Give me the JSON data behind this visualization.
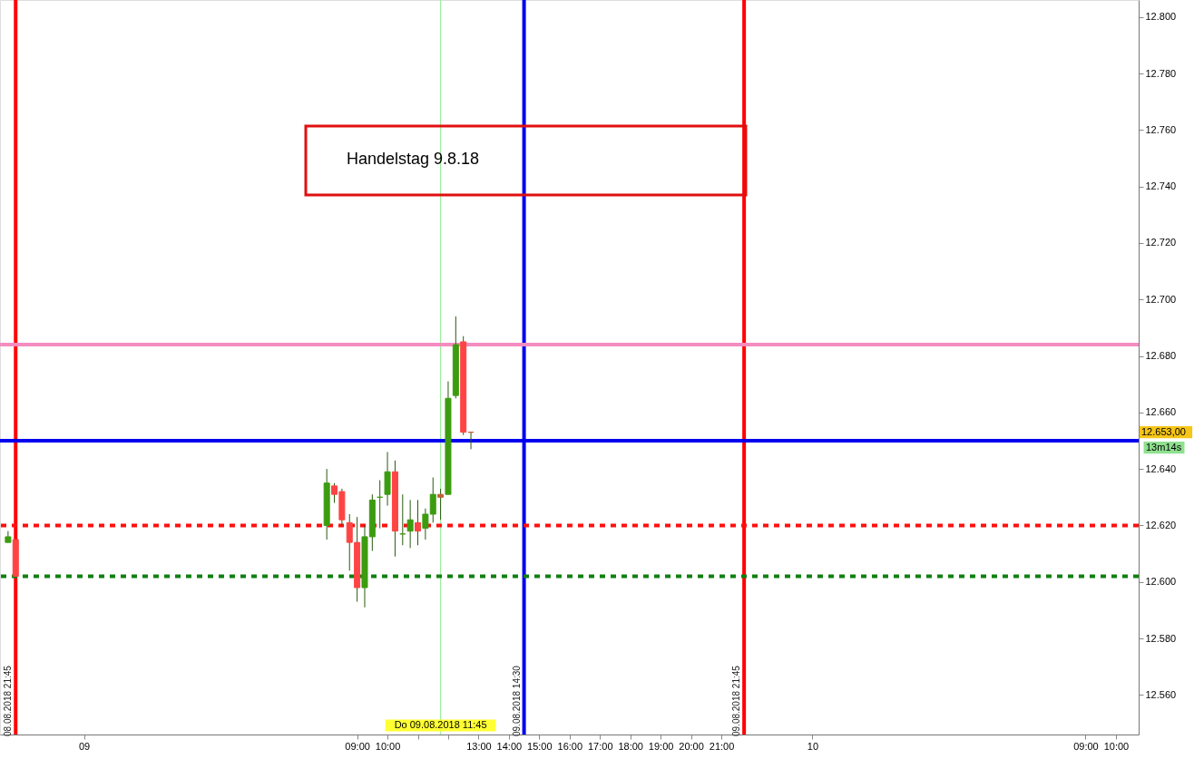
{
  "chart_data": {
    "type": "candlestick",
    "x": [
      "2018-08-08T21:30",
      "2018-08-08T21:45",
      "2018-08-09T08:00",
      "2018-08-09T08:15",
      "2018-08-09T08:30",
      "2018-08-09T08:45",
      "2018-08-09T09:00",
      "2018-08-09T09:15",
      "2018-08-09T09:30",
      "2018-08-09T09:45",
      "2018-08-09T10:00",
      "2018-08-09T10:15",
      "2018-08-09T10:30",
      "2018-08-09T10:45",
      "2018-08-09T11:00",
      "2018-08-09T11:15",
      "2018-08-09T11:30",
      "2018-08-09T11:45",
      "2018-08-09T12:00",
      "2018-08-09T12:15",
      "2018-08-09T12:30",
      "2018-08-09T12:45"
    ],
    "ohlc": [
      [
        12614,
        12618,
        12614,
        12616
      ],
      [
        12615,
        12615,
        12602,
        12602
      ],
      [
        12620,
        12640,
        12615,
        12635
      ],
      [
        12634,
        12635,
        12628,
        12631
      ],
      [
        12632,
        12633,
        12620,
        12622
      ],
      [
        12621,
        12624,
        12604,
        12614
      ],
      [
        12614,
        12623,
        12593,
        12598
      ],
      [
        12598,
        12620,
        12591,
        12616
      ],
      [
        12616,
        12631,
        12611,
        12629
      ],
      [
        12630,
        12636,
        12619,
        12630
      ],
      [
        12631,
        12646,
        12627,
        12639
      ],
      [
        12639,
        12643,
        12609,
        12618
      ],
      [
        12617,
        12631,
        12613,
        12617
      ],
      [
        12618,
        12629,
        12612,
        12622
      ],
      [
        12621,
        12629,
        12613,
        12618
      ],
      [
        12619,
        12626,
        12615,
        12624
      ],
      [
        12624,
        12637,
        12621,
        12631
      ],
      [
        12631,
        12633,
        12622,
        12630
      ],
      [
        12631,
        12671,
        12631,
        12665
      ],
      [
        12666,
        12694,
        12665,
        12684
      ],
      [
        12685,
        12687,
        12652,
        12653
      ],
      [
        12653,
        12653,
        12647,
        12653
      ]
    ],
    "colors": [
      "#3c9c10",
      "#ff4444",
      "#3c9c10",
      "#ff4444",
      "#ff4444",
      "#ff4444",
      "#ff4444",
      "#3c9c10",
      "#3c9c10",
      "#3c9c10",
      "#3c9c10",
      "#ff4444",
      "#3c9c10",
      "#3c9c10",
      "#ff4444",
      "#3c9c10",
      "#3c9c10",
      "#c0603a",
      "#3c9c10",
      "#3c9c10",
      "#ff4444",
      "#c0603a"
    ],
    "xlim": [
      "2018-08-08T21:23",
      "2018-08-10T10:36"
    ],
    "xticks": [
      {
        "value": "2018-08-09",
        "label": "09"
      },
      {
        "value": "2018-08-09T09:00",
        "label": "09:00"
      },
      {
        "value": "2018-08-09T10:00",
        "label": "10:00"
      },
      {
        "value": "2018-08-09T11:00",
        "label": null
      },
      {
        "value": "2018-08-09T12:00",
        "label": null
      },
      {
        "value": "2018-08-09T13:00",
        "label": "13:00"
      },
      {
        "value": "2018-08-09T14:00",
        "label": "14:00"
      },
      {
        "value": "2018-08-09T15:00",
        "label": "15:00"
      },
      {
        "value": "2018-08-09T16:00",
        "label": "16:00"
      },
      {
        "value": "2018-08-09T17:00",
        "label": "17:00"
      },
      {
        "value": "2018-08-09T18:00",
        "label": "18:00"
      },
      {
        "value": "2018-08-09T19:00",
        "label": "19:00"
      },
      {
        "value": "2018-08-09T20:00",
        "label": "20:00"
      },
      {
        "value": "2018-08-09T21:00",
        "label": "21:00"
      },
      {
        "value": "2018-08-10",
        "label": "10"
      },
      {
        "value": "2018-08-10T09:00",
        "label": "09:00"
      },
      {
        "value": "2018-08-10T10:00",
        "label": "10:00"
      }
    ],
    "ylim": [
      12546,
      12806
    ],
    "yticks": [
      {
        "value": 12560,
        "label": "12.560"
      },
      {
        "value": 12580,
        "label": "12.580"
      },
      {
        "value": 12600,
        "label": "12.600"
      },
      {
        "value": 12620,
        "label": "12.620"
      },
      {
        "value": 12640,
        "label": "12.640"
      },
      {
        "value": 12660,
        "label": "12.660"
      },
      {
        "value": 12680,
        "label": "12.680"
      },
      {
        "value": 12700,
        "label": "12.700"
      },
      {
        "value": 12720,
        "label": "12.720"
      },
      {
        "value": 12740,
        "label": "12.740"
      },
      {
        "value": 12760,
        "label": "12.760"
      },
      {
        "value": 12780,
        "label": "12.780"
      },
      {
        "value": 12800,
        "label": "12.800"
      }
    ],
    "ref_lines": [
      {
        "axis": "x",
        "value": "2018-08-08T21:45",
        "label": "08.08.2018 21:45",
        "color": "#ff0000"
      },
      {
        "axis": "x",
        "value": "2018-08-09T14:30",
        "label": "09.08.2018 14:30",
        "color": "#0000ee"
      },
      {
        "axis": "x",
        "value": "2018-08-09T21:45",
        "label": "09.08.2018 21:45",
        "color": "#ff0000"
      },
      {
        "axis": "x",
        "value": "2018-08-09T11:45",
        "color": "#90ee90"
      },
      {
        "axis": "y",
        "value": 12684,
        "color": "#f58cc0"
      },
      {
        "axis": "y",
        "value": 12650,
        "color": "#0000ee"
      },
      {
        "axis": "y",
        "value": 12620,
        "color": "#ff1010",
        "line_style": "dotted"
      },
      {
        "axis": "y",
        "value": 12602,
        "color": "#108010",
        "line_style": "dotted"
      }
    ],
    "annotations": [
      "Handelstag 9.8.18",
      "12.653,00",
      "13m14s",
      "Do 09.08.2018 11:45"
    ],
    "grid": false
  }
}
